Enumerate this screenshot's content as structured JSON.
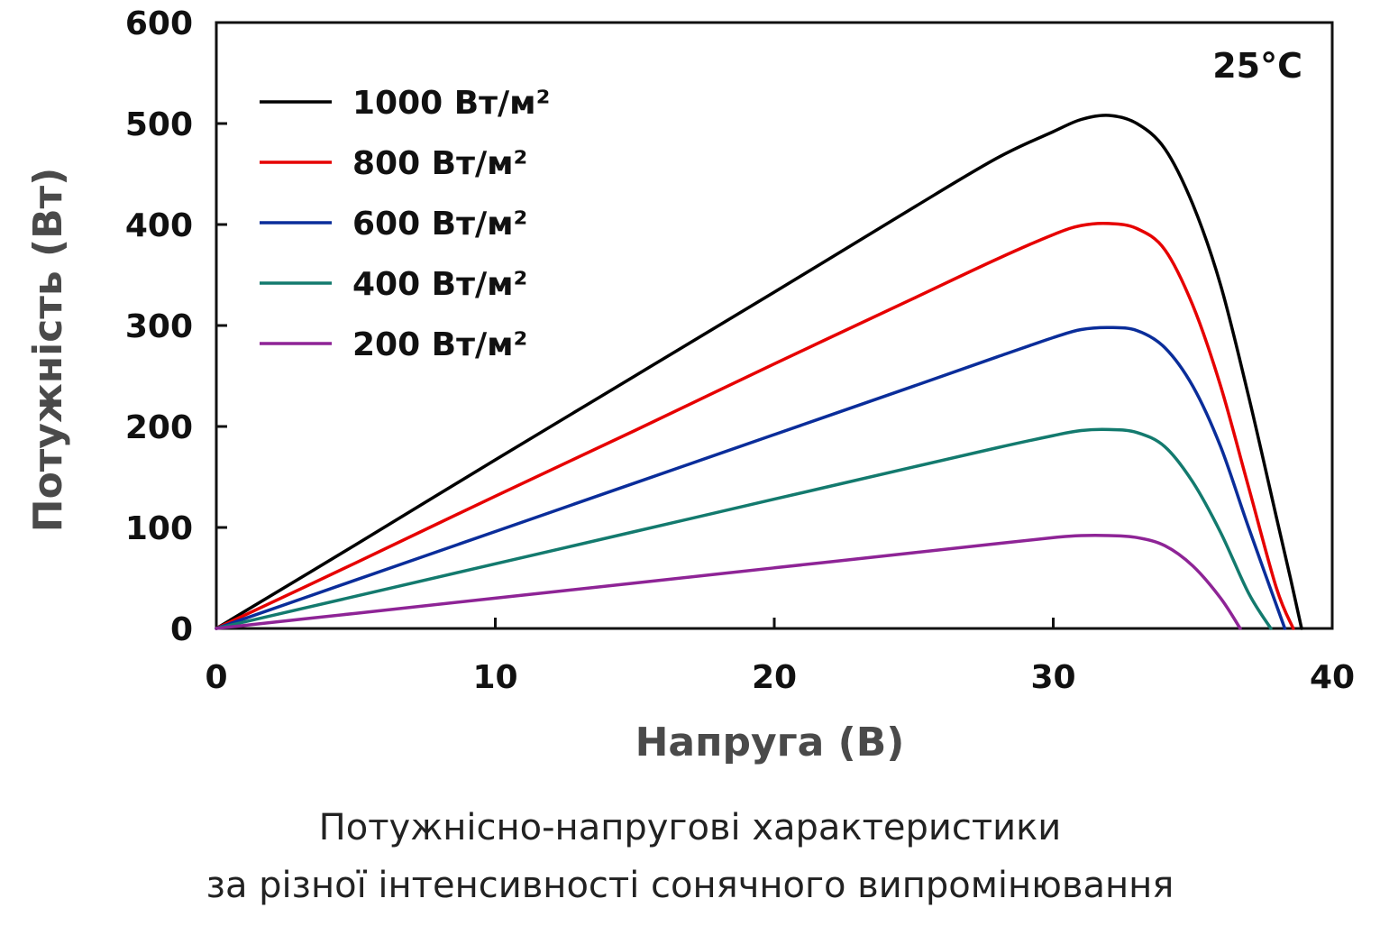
{
  "chart_data": {
    "type": "line",
    "title": "",
    "xlabel": "Напруга (В)",
    "ylabel": "Потужність (Вт)",
    "xlim": [
      0,
      40
    ],
    "ylim": [
      0,
      600
    ],
    "xticks": [
      "0",
      "10",
      "20",
      "30",
      "40"
    ],
    "yticks": [
      "0",
      "100",
      "200",
      "300",
      "400",
      "500",
      "600"
    ],
    "grid": false,
    "legend_position": "top-left",
    "annotation": "25°C",
    "series": [
      {
        "name": "1000 Вт/м²",
        "color": "#000000",
        "x": [
          0,
          5,
          10,
          15,
          20,
          25,
          28,
          30,
          31,
          32,
          33,
          34,
          35,
          36,
          37,
          38,
          38.5,
          38.9
        ],
        "y": [
          0,
          83,
          167,
          250,
          333,
          417,
          466,
          492,
          504,
          508,
          500,
          475,
          420,
          340,
          230,
          110,
          50,
          0
        ]
      },
      {
        "name": "800 Вт/м²",
        "color": "#e60000",
        "x": [
          0,
          5,
          10,
          15,
          20,
          25,
          28,
          30,
          31,
          32,
          33,
          34,
          35,
          36,
          37,
          38,
          38.6
        ],
        "y": [
          0,
          65,
          131,
          196,
          262,
          327,
          366,
          390,
          399,
          401,
          396,
          375,
          320,
          240,
          140,
          40,
          0
        ]
      },
      {
        "name": "600 Вт/м²",
        "color": "#0a2d9a",
        "x": [
          0,
          5,
          10,
          15,
          20,
          25,
          28,
          30,
          31,
          32,
          33,
          34,
          35,
          36,
          37,
          38.3
        ],
        "y": [
          0,
          48,
          96,
          144,
          192,
          240,
          269,
          288,
          296,
          298,
          295,
          278,
          240,
          180,
          100,
          0
        ]
      },
      {
        "name": "400 Вт/м²",
        "color": "#137a6e",
        "x": [
          0,
          5,
          10,
          15,
          20,
          25,
          28,
          30,
          31,
          32,
          33,
          34,
          35,
          36,
          37,
          37.8
        ],
        "y": [
          0,
          32,
          64,
          96,
          128,
          160,
          179,
          191,
          196,
          197,
          194,
          180,
          145,
          95,
          35,
          0
        ]
      },
      {
        "name": "200 Вт/м²",
        "color": "#8e2496",
        "x": [
          0,
          5,
          10,
          15,
          20,
          25,
          28,
          30,
          31,
          32,
          33,
          34,
          35,
          36,
          36.7
        ],
        "y": [
          0,
          15,
          30,
          45,
          60,
          75,
          84,
          90,
          92,
          92,
          90,
          82,
          62,
          30,
          0
        ]
      }
    ]
  },
  "caption": {
    "line1": "Потужнісно-напругові характеристики",
    "line2": "за різної інтенсивності сонячного випромінювання"
  }
}
